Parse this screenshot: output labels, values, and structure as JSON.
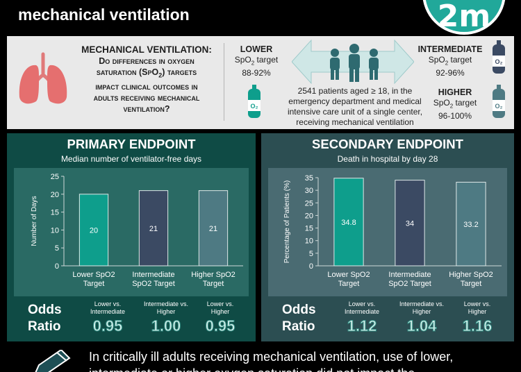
{
  "header": {
    "title_line0": "",
    "title_line1": "mechanical ventilation",
    "logo_text": "2m"
  },
  "study": {
    "question_head": "MECHANICAL VENTILATION:",
    "question_l1": "Do differences in oxygen",
    "question_l2": "saturation (SpO",
    "question_l2_sub": "2",
    "question_l2_end": ") targets",
    "question_l3": "impact clinical outcomes in",
    "question_l4": "adults receiving mechanical",
    "question_l5": "ventilation?",
    "lower": {
      "name": "LOWER",
      "target_label": "SpO",
      "target_sub": "2",
      "target_end": " target",
      "range": "88-92%"
    },
    "intermediate": {
      "name": "INTERMEDIATE",
      "target_label": "SpO",
      "target_sub": "2",
      "target_end": " target",
      "range": "92-96%"
    },
    "higher": {
      "name": "HIGHER",
      "target_label": "SpO",
      "target_sub": "2",
      "target_end": " target",
      "range": "96-100%"
    },
    "bottle_label": "O2",
    "patients_l1": "2541 patients aged ≥ 18, in the",
    "patients_l2": "emergency department and medical",
    "patients_l3": "intensive care unit of a single center,",
    "patients_l4": "receiving mechanical ventilation"
  },
  "primary": {
    "title": "PRIMARY ENDPOINT",
    "subtitle": "Median number of ventilator-free days",
    "odds_label_1": "Odds",
    "odds_label_2": "Ratio",
    "odds": [
      {
        "cmp_l1": "Lower vs.",
        "cmp_l2": "Intermediate",
        "value": "0.95"
      },
      {
        "cmp_l1": "Intermediate vs.",
        "cmp_l2": "Higher",
        "value": "1.00"
      },
      {
        "cmp_l1": "Lower vs.",
        "cmp_l2": "Higher",
        "value": "0.95"
      }
    ]
  },
  "secondary": {
    "title": "SECONDARY ENDPOINT",
    "subtitle": "Death in hospital by day 28",
    "odds_label_1": "Odds",
    "odds_label_2": "Ratio",
    "odds": [
      {
        "cmp_l1": "Lower vs.",
        "cmp_l2": "Intermediate",
        "value": "1.12"
      },
      {
        "cmp_l1": "Intermediate vs.",
        "cmp_l2": "Higher",
        "value": "1.04"
      },
      {
        "cmp_l1": "Lower vs.",
        "cmp_l2": "Higher",
        "value": "1.16"
      }
    ]
  },
  "chart_data": [
    {
      "type": "bar",
      "title": "",
      "ylabel": "Number of Days",
      "categories": [
        [
          "Lower SpO2",
          "Target"
        ],
        [
          "Intermediate",
          "SpO2 Target"
        ],
        [
          "Higher SpO2",
          "Target"
        ]
      ],
      "values": [
        20,
        21,
        21
      ],
      "data_labels": [
        "20",
        "21",
        "21"
      ],
      "ylim": [
        0,
        25
      ],
      "yticks": [
        0,
        5,
        10,
        15,
        20,
        25
      ],
      "colors": [
        "#0e9e8c",
        "#3b4a63",
        "#4e7a83"
      ],
      "grid": false
    },
    {
      "type": "bar",
      "title": "",
      "ylabel": "Percentage of Patients (%)",
      "categories": [
        [
          "Lower SpO2",
          "Target"
        ],
        [
          "Intermediate",
          "SpO2 Target"
        ],
        [
          "Higher SpO2",
          "Target"
        ]
      ],
      "values": [
        34.8,
        34,
        33.2
      ],
      "data_labels": [
        "34.8",
        "34",
        "33.2"
      ],
      "ylim": [
        0,
        35
      ],
      "yticks": [
        0,
        5,
        10,
        15,
        20,
        25,
        30,
        35
      ],
      "colors": [
        "#0e9e8c",
        "#3b4a63",
        "#4e7a83"
      ],
      "grid": false
    }
  ],
  "conclusion": {
    "line1": "In critically ill adults receiving mechanical ventilation, use of lower,",
    "line2": "intermediate or higher oxygen saturation did not impact the"
  }
}
